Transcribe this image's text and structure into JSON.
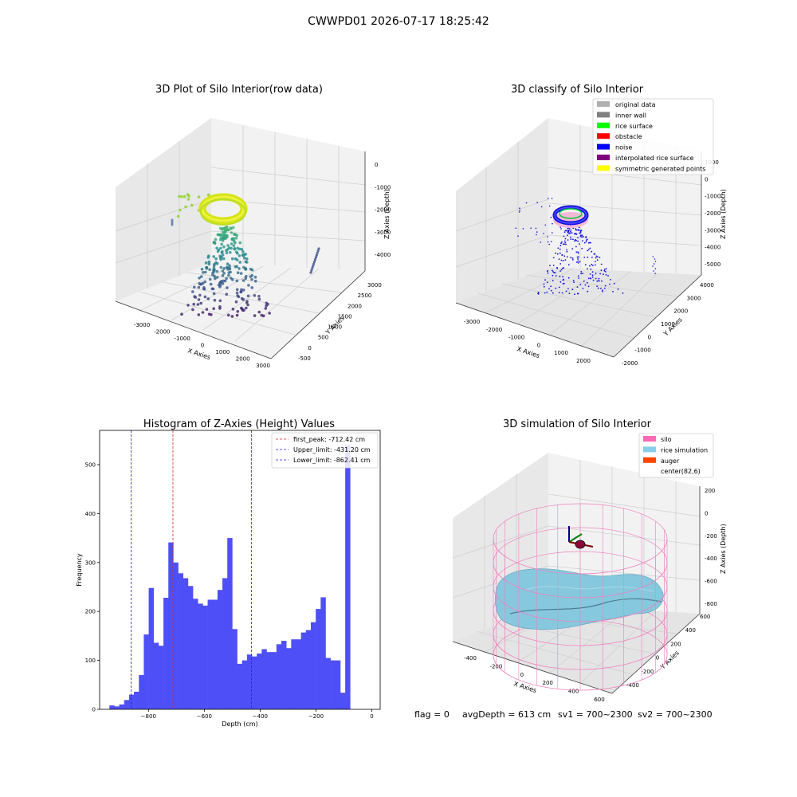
{
  "page_title": "CWWPD01 2026-07-17 18:25:42",
  "footer": {
    "flag": "flag = 0",
    "avg_depth": "avgDepth = 613 cm",
    "sv1": "sv1 = 700~2300",
    "sv2": "sv2 = 700~2300"
  },
  "colors": {
    "hist_bar": "#4f4ff7",
    "peak_line": "#d92626",
    "limit_line": "#2020d0",
    "silo_wire": "#f080c0",
    "rice_surface": "#86c8dd",
    "noise": "#1010e0",
    "points_yellow": "#d8e81a"
  },
  "chart_data": [
    {
      "type": "scatter",
      "projection": "3d",
      "title": "3D Plot of Silo Interior(row data)",
      "xlabel": "X Axies",
      "ylabel": "Y Axies",
      "zlabel": "Z Axies (Depth)",
      "x_ticks": [
        "-3000",
        "-2000",
        "-1000",
        "0",
        "1000",
        "2000",
        "3000"
      ],
      "y_ticks": [
        "-500",
        "0",
        "500",
        "1000",
        "1500",
        "2000",
        "2500",
        "3000"
      ],
      "z_ticks": [
        "0",
        "-1000",
        "-2000",
        "-3000",
        "-4000"
      ],
      "colormap": "viridis"
    },
    {
      "type": "scatter",
      "projection": "3d",
      "title": "3D classify of Silo Interior",
      "xlabel": "X Axies",
      "ylabel": "Y Axies",
      "zlabel": "Z Axies (Depth)",
      "x_ticks": [
        "-3000",
        "-2000",
        "-1000",
        "0",
        "1000",
        "2000"
      ],
      "y_ticks": [
        "-2000",
        "-1000",
        "0",
        "1000",
        "2000",
        "3000",
        "4000"
      ],
      "z_ticks": [
        "1000",
        "0",
        "-1000",
        "-2000",
        "-3000",
        "-4000",
        "-5000"
      ],
      "legend": [
        {
          "label": "original data",
          "color": "#b0b0b0"
        },
        {
          "label": "inner wall",
          "color": "#808080"
        },
        {
          "label": "rice surface",
          "color": "#00ff00"
        },
        {
          "label": "obstacle",
          "color": "#ff0000"
        },
        {
          "label": "noise",
          "color": "#0000ff"
        },
        {
          "label": "interpolated rice surface",
          "color": "#800080"
        },
        {
          "label": "symmetric generated points",
          "color": "#ffff00"
        }
      ],
      "legend_loc": "upper right"
    },
    {
      "type": "bar",
      "title": "Histogram of Z-Axies (Height) Values",
      "xlabel": "Depth (cm)",
      "ylabel": "Frequency",
      "xlim": [
        -975,
        30
      ],
      "ylim": [
        0,
        570
      ],
      "x_ticks": [
        -800,
        -600,
        -400,
        -200,
        0
      ],
      "y_ticks": [
        0,
        100,
        200,
        300,
        400,
        500
      ],
      "bin_width": 17.6,
      "bin_start": -940,
      "values": [
        8,
        6,
        10,
        19,
        30,
        36,
        70,
        153,
        248,
        136,
        130,
        228,
        341,
        300,
        278,
        268,
        252,
        226,
        216,
        212,
        224,
        224,
        244,
        268,
        350,
        164,
        93,
        100,
        112,
        108,
        114,
        123,
        117,
        117,
        133,
        140,
        125,
        143,
        143,
        157,
        162,
        178,
        205,
        229,
        105,
        100,
        100,
        34,
        540
      ],
      "vlines": [
        {
          "label": "first_peak: -712.42 cm",
          "x": -712.42,
          "color": "#d92626"
        },
        {
          "label": "Upper_limit: -431.20 cm",
          "x": -431.2,
          "color": "#2020d0"
        },
        {
          "label": "Lower_limit: -862.41 cm",
          "x": -862.41,
          "color": "#2020d0"
        }
      ],
      "legend_loc": "upper right"
    },
    {
      "type": "surface",
      "projection": "3d",
      "title": "3D simulation of Silo Interior",
      "xlabel": "X Axies",
      "ylabel": "Y Axies",
      "zlabel": "Z Axies (Depth)",
      "x_ticks": [
        "-400",
        "-200",
        "0",
        "200",
        "400",
        "600"
      ],
      "y_ticks": [
        "-400",
        "-200",
        "0",
        "200",
        "400",
        "600"
      ],
      "z_ticks": [
        "200",
        "0",
        "-200",
        "-400",
        "-600",
        "-800"
      ],
      "legend": [
        {
          "label": "silo",
          "color": "#ff69b4"
        },
        {
          "label": "rice simulation",
          "color": "#87ceeb"
        },
        {
          "label": "auger",
          "color": "#ff4500"
        },
        {
          "label": "center(82,6)",
          "color": "#ffffff"
        }
      ],
      "legend_loc": "upper right"
    }
  ]
}
